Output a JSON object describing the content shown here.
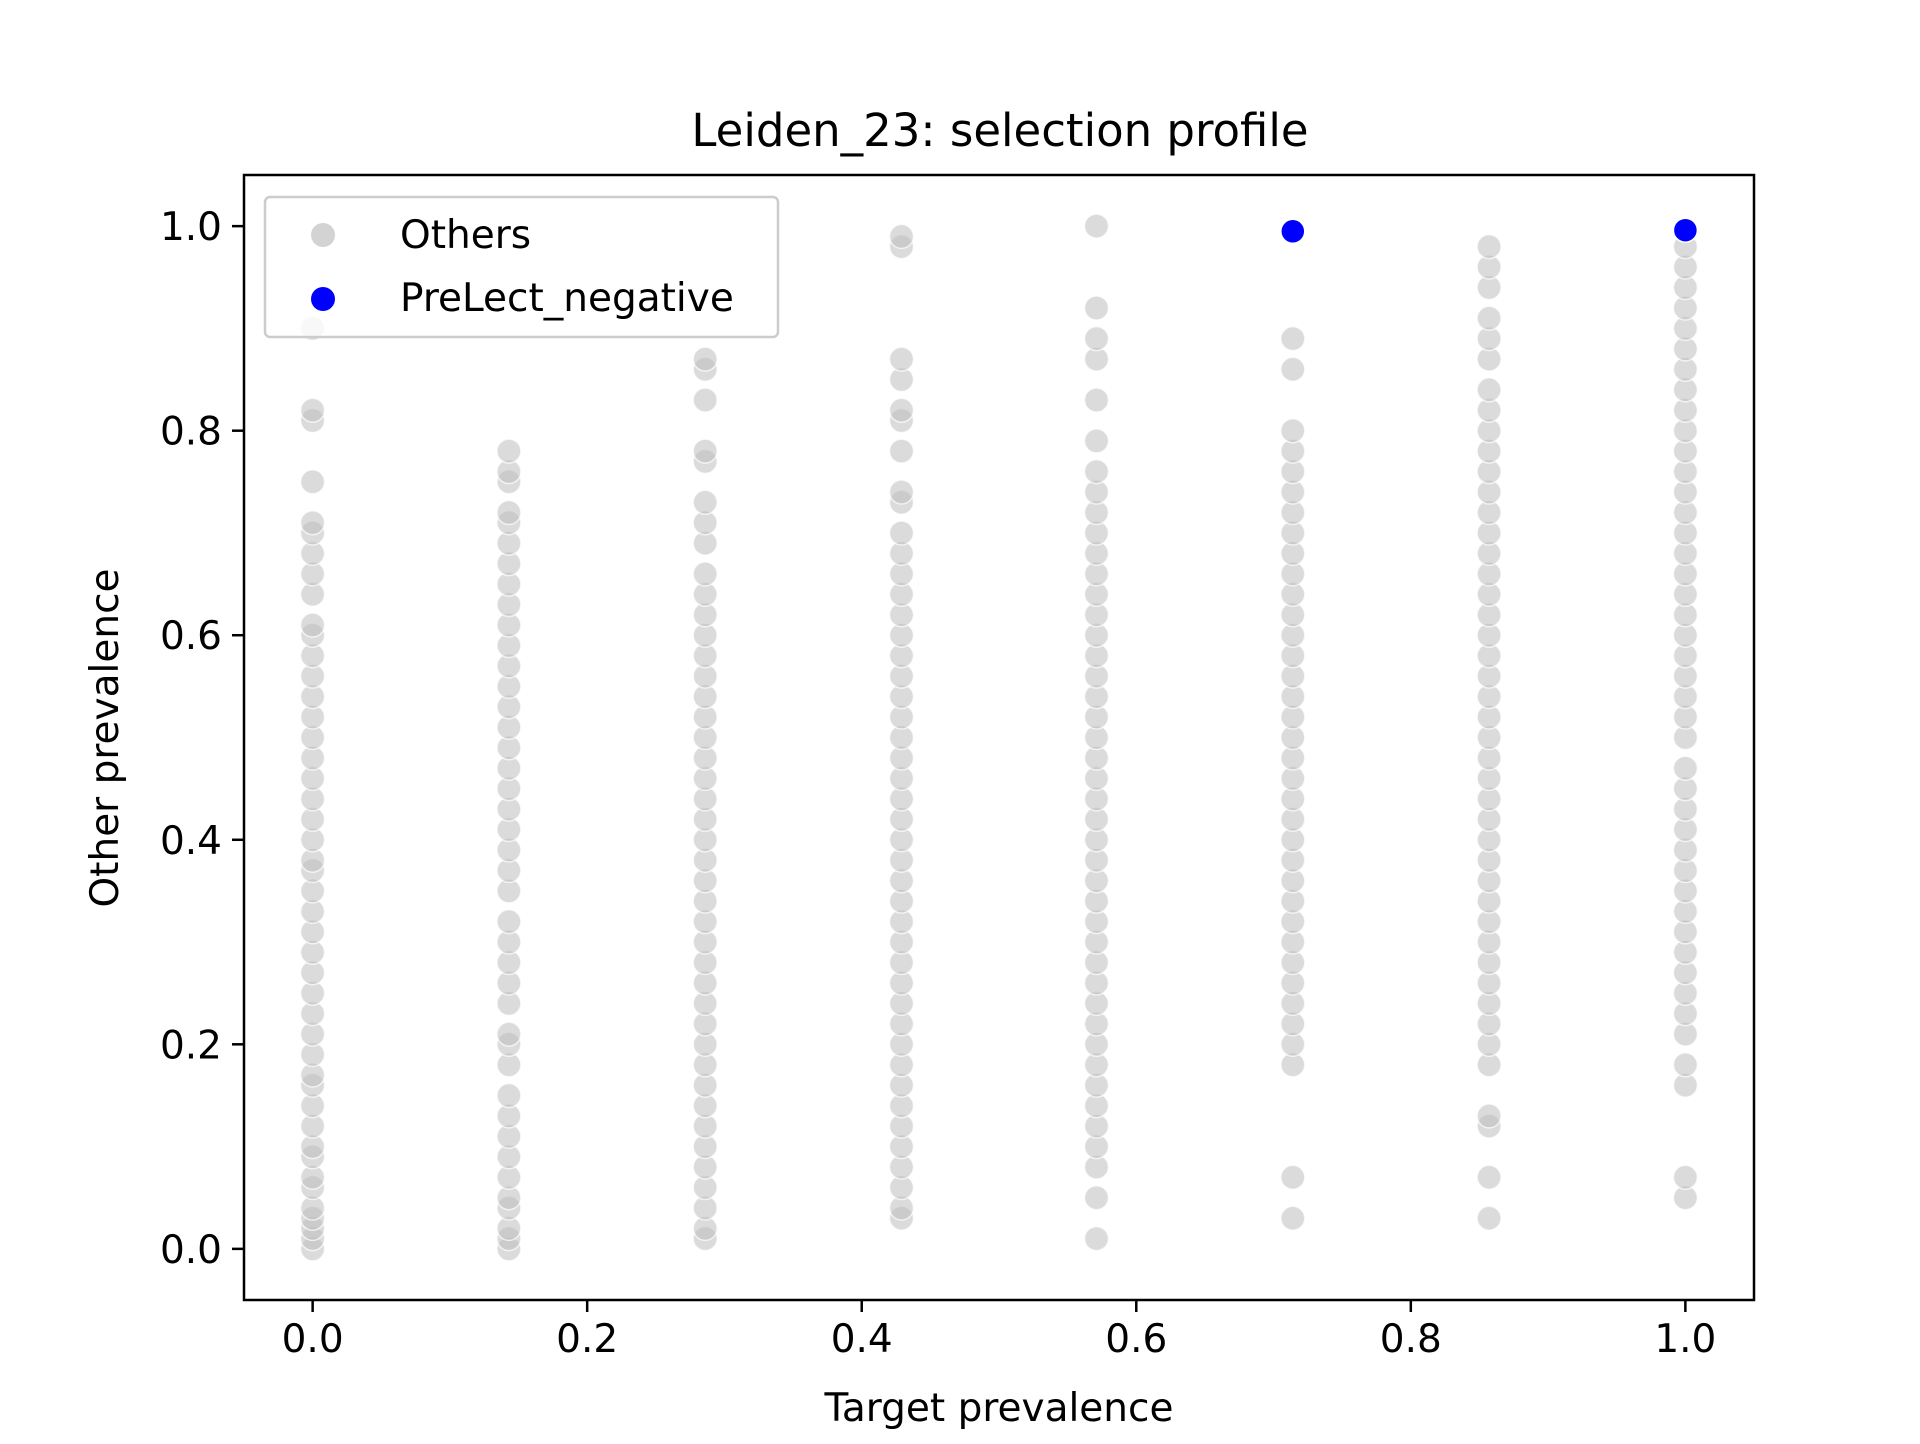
{
  "chart_data": {
    "type": "scatter",
    "title": "Leiden_23: selection profile",
    "xlabel": "Target prevalence",
    "ylabel": "Other prevalence",
    "xlim": [
      -0.05,
      1.05
    ],
    "ylim": [
      -0.05,
      1.05
    ],
    "xticks": [
      "0.0",
      "0.2",
      "0.4",
      "0.6",
      "0.8",
      "1.0"
    ],
    "yticks": [
      "0.0",
      "0.2",
      "0.4",
      "0.6",
      "0.8",
      "1.0"
    ],
    "grid": false,
    "legend_position": "top-left",
    "series": [
      {
        "name": "Others",
        "color": "#bdbdbd",
        "columns": [
          {
            "x": 0.0,
            "y": [
              0.0,
              0.01,
              0.02,
              0.03,
              0.04,
              0.06,
              0.07,
              0.09,
              0.1,
              0.12,
              0.14,
              0.16,
              0.17,
              0.19,
              0.21,
              0.23,
              0.25,
              0.27,
              0.29,
              0.31,
              0.33,
              0.35,
              0.37,
              0.38,
              0.4,
              0.42,
              0.44,
              0.46,
              0.48,
              0.5,
              0.52,
              0.54,
              0.56,
              0.58,
              0.6,
              0.61,
              0.64,
              0.66,
              0.68,
              0.7,
              0.71,
              0.75,
              0.81,
              0.82,
              0.9
            ]
          },
          {
            "x": 0.143,
            "y": [
              0.0,
              0.01,
              0.02,
              0.04,
              0.05,
              0.07,
              0.09,
              0.11,
              0.13,
              0.15,
              0.18,
              0.2,
              0.21,
              0.24,
              0.26,
              0.28,
              0.3,
              0.32,
              0.35,
              0.37,
              0.39,
              0.41,
              0.43,
              0.45,
              0.47,
              0.49,
              0.51,
              0.53,
              0.55,
              0.57,
              0.59,
              0.61,
              0.63,
              0.65,
              0.67,
              0.69,
              0.71,
              0.72,
              0.75,
              0.76,
              0.78
            ]
          },
          {
            "x": 0.286,
            "y": [
              0.01,
              0.02,
              0.04,
              0.06,
              0.08,
              0.1,
              0.12,
              0.14,
              0.16,
              0.18,
              0.2,
              0.22,
              0.24,
              0.26,
              0.28,
              0.3,
              0.32,
              0.34,
              0.36,
              0.38,
              0.4,
              0.42,
              0.44,
              0.46,
              0.48,
              0.5,
              0.52,
              0.54,
              0.56,
              0.58,
              0.6,
              0.62,
              0.64,
              0.66,
              0.69,
              0.71,
              0.73,
              0.77,
              0.78,
              0.83,
              0.86,
              0.87
            ]
          },
          {
            "x": 0.429,
            "y": [
              0.03,
              0.04,
              0.06,
              0.08,
              0.1,
              0.12,
              0.14,
              0.16,
              0.18,
              0.2,
              0.22,
              0.24,
              0.26,
              0.28,
              0.3,
              0.32,
              0.34,
              0.36,
              0.38,
              0.4,
              0.42,
              0.44,
              0.46,
              0.48,
              0.5,
              0.52,
              0.54,
              0.56,
              0.58,
              0.6,
              0.62,
              0.64,
              0.66,
              0.68,
              0.7,
              0.73,
              0.74,
              0.78,
              0.81,
              0.82,
              0.85,
              0.87,
              0.98,
              0.99
            ]
          },
          {
            "x": 0.571,
            "y": [
              0.01,
              0.05,
              0.08,
              0.1,
              0.12,
              0.14,
              0.16,
              0.18,
              0.2,
              0.22,
              0.24,
              0.26,
              0.28,
              0.3,
              0.32,
              0.34,
              0.36,
              0.38,
              0.4,
              0.42,
              0.44,
              0.46,
              0.48,
              0.5,
              0.52,
              0.54,
              0.56,
              0.58,
              0.6,
              0.62,
              0.64,
              0.66,
              0.68,
              0.7,
              0.72,
              0.74,
              0.76,
              0.79,
              0.83,
              0.87,
              0.89,
              0.92,
              1.0
            ]
          },
          {
            "x": 0.714,
            "y": [
              0.03,
              0.07,
              0.18,
              0.2,
              0.22,
              0.24,
              0.26,
              0.28,
              0.3,
              0.32,
              0.34,
              0.36,
              0.38,
              0.4,
              0.42,
              0.44,
              0.46,
              0.48,
              0.5,
              0.52,
              0.54,
              0.56,
              0.58,
              0.6,
              0.62,
              0.64,
              0.66,
              0.68,
              0.7,
              0.72,
              0.74,
              0.76,
              0.78,
              0.8,
              0.86,
              0.89
            ]
          },
          {
            "x": 0.857,
            "y": [
              0.03,
              0.07,
              0.12,
              0.13,
              0.18,
              0.2,
              0.22,
              0.24,
              0.26,
              0.28,
              0.3,
              0.32,
              0.34,
              0.36,
              0.38,
              0.4,
              0.42,
              0.44,
              0.46,
              0.48,
              0.5,
              0.52,
              0.54,
              0.56,
              0.58,
              0.6,
              0.62,
              0.64,
              0.66,
              0.68,
              0.7,
              0.72,
              0.74,
              0.76,
              0.78,
              0.8,
              0.82,
              0.84,
              0.87,
              0.89,
              0.91,
              0.94,
              0.96,
              0.98
            ]
          },
          {
            "x": 1.0,
            "y": [
              0.05,
              0.07,
              0.16,
              0.18,
              0.21,
              0.23,
              0.25,
              0.27,
              0.29,
              0.31,
              0.33,
              0.35,
              0.37,
              0.39,
              0.41,
              0.43,
              0.45,
              0.47,
              0.5,
              0.52,
              0.54,
              0.56,
              0.58,
              0.6,
              0.62,
              0.64,
              0.66,
              0.68,
              0.7,
              0.72,
              0.74,
              0.76,
              0.78,
              0.8,
              0.82,
              0.84,
              0.86,
              0.88,
              0.9,
              0.92,
              0.94,
              0.96,
              0.98
            ]
          }
        ]
      },
      {
        "name": "PreLect_negative",
        "color": "#0000ff",
        "points": [
          {
            "x": 0.714,
            "y": 0.995
          },
          {
            "x": 1.0,
            "y": 0.996
          }
        ]
      }
    ]
  }
}
